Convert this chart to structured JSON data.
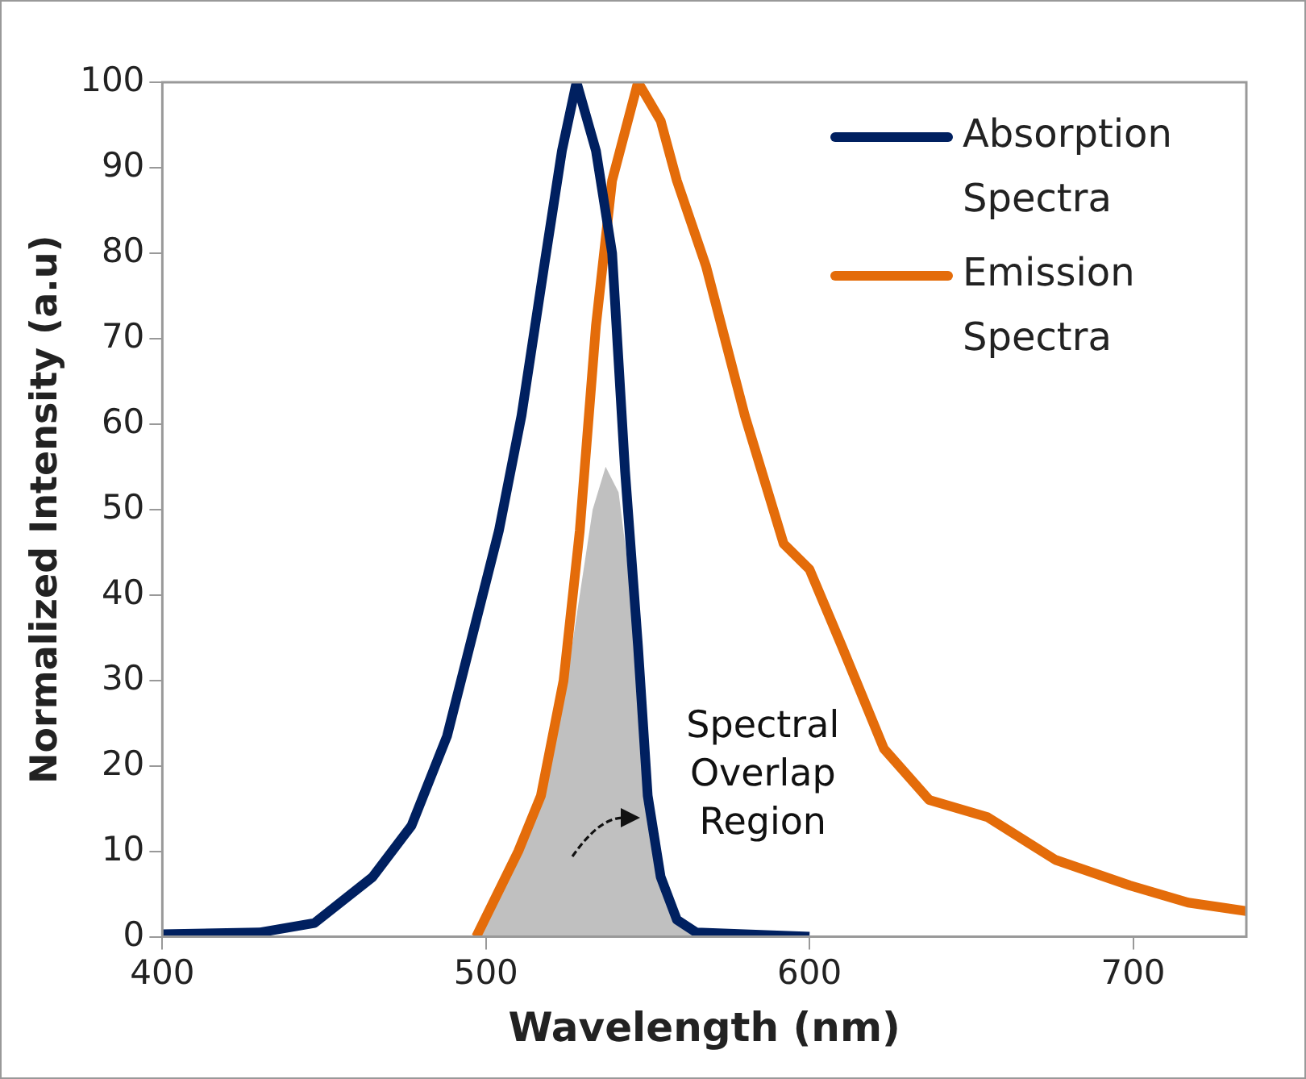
{
  "chart_data": {
    "type": "line",
    "xlabel": "Wavelength (nm)",
    "ylabel": "Normalized Intensity (a.u)",
    "xlim": [
      400,
      735
    ],
    "xticks": [
      400,
      500,
      600,
      700
    ],
    "ylim": [
      0,
      100
    ],
    "yticks": [
      0,
      10,
      20,
      30,
      40,
      50,
      60,
      70,
      80,
      90,
      100
    ],
    "grid": false,
    "legend": "top right",
    "marker": "none",
    "line_style": "solid",
    "annotations": [
      "Spectral Overlap Region"
    ],
    "series": [
      {
        "type": "area",
        "color": "#c0c0c0",
        "x": [
          497,
          510,
          520,
          527,
          533,
          537,
          541,
          545,
          549,
          553,
          558,
          565
        ],
        "values": [
          0,
          9,
          20,
          35,
          50,
          55,
          52,
          40,
          22,
          10,
          3,
          0
        ]
      },
      {
        "name": "Absorption Spectra",
        "color": "#002060",
        "x": [
          400,
          430,
          447,
          465,
          477,
          488,
          497,
          504,
          511,
          518,
          523.5,
          528,
          534,
          539,
          543,
          547,
          550,
          554,
          559,
          565,
          600
        ],
        "values": [
          0.3,
          0.5,
          1.6,
          7,
          13,
          23.5,
          37,
          47.5,
          61,
          78.5,
          92,
          100,
          92,
          80,
          54.5,
          34,
          16.5,
          7,
          2,
          0.5,
          0
        ]
      },
      {
        "name": "Emission Spectra",
        "color": "#e46c0a",
        "x": [
          497,
          510,
          517,
          524,
          529,
          534,
          539,
          547,
          554,
          559,
          568,
          580,
          592,
          600,
          610,
          623,
          637,
          655,
          676,
          699,
          717,
          735
        ],
        "values": [
          0,
          10,
          16.5,
          30,
          47.5,
          71.5,
          88.5,
          100,
          95.5,
          88.5,
          78.5,
          61,
          46,
          43,
          34,
          22,
          16,
          14,
          9,
          6,
          4,
          3
        ]
      }
    ]
  }
}
